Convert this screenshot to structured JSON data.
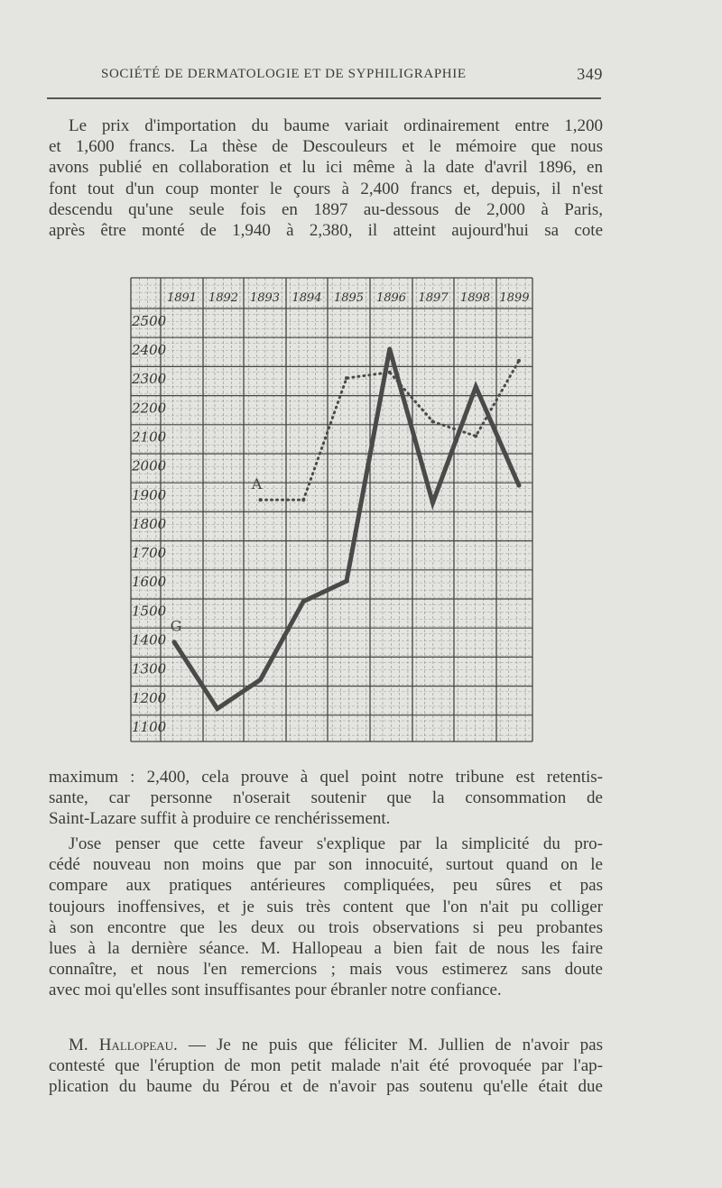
{
  "header": {
    "title": "SOCIÉTÉ DE DERMATOLOGIE ET DE SYPHILIGRAPHIE",
    "page_number": "349"
  },
  "para1": [
    "Le prix d'importation du baume variait ordinairement entre 1,200",
    "et 1,600 francs. La thèse de Descouleurs et le mémoire que nous",
    "avons publié en collaboration et lu ici même à la date d'avril 1896, en",
    "font tout d'un coup monter le çours à 2,400 francs et, depuis, il n'est",
    "descendu qu'une seule fois en 1897 au-dessous de 2,000 à Paris,",
    "après être monté de 1,940 à 2,380, il atteint aujourd'hui sa cote"
  ],
  "para2": [
    "maximum : 2,400, cela prouve à quel point notre tribune est retentis-",
    "sante, car personne n'oserait soutenir que la consommation de",
    "Saint-Lazare suffit à produire ce renchérissement."
  ],
  "para3": [
    "J'ose penser que cette faveur s'explique par la simplicité du pro-",
    "cédé nouveau non moins que par son innocuité, surtout quand on le",
    "compare aux pratiques antérieures compliquées, peu sûres et pas",
    "toujours inoffensives, et je suis très content que l'on n'ait pu colliger",
    "à son encontre que les deux ou trois observations si peu probantes",
    "lues à la dernière séance. M. Hallopeau a bien fait de nous les faire",
    "connaître, et nous l'en remercions ; mais vous estimerez sans doute",
    "avec moi qu'elles sont insuffisantes pour ébranler notre confiance."
  ],
  "para4": {
    "speaker": "M. Hallopeau.",
    "lines": [
      "— Je ne puis que féliciter M. Jullien de n'avoir pas",
      "contesté que l'éruption de mon petit malade n'ait été provoquée par l'ap-",
      "plication du baume du Pérou et de n'avoir pas soutenu qu'elle était due"
    ]
  },
  "chart_data": {
    "type": "line",
    "title": "",
    "xlabel": "",
    "ylabel": "",
    "x_tick_labels": [
      "1891",
      "1892",
      "1893",
      "1894",
      "1895",
      "1896",
      "1897",
      "1898",
      "1899"
    ],
    "y_tick_labels": [
      "2500",
      "2400",
      "2300",
      "2200",
      "2100",
      "2000",
      "1900",
      "1800",
      "1700",
      "1600",
      "1500",
      "1400",
      "1300",
      "1200",
      "1100"
    ],
    "ylim": [
      1100,
      2500
    ],
    "grid": true,
    "series": [
      {
        "name": "G",
        "style": "solid-heavy",
        "x": [
          1891,
          1892,
          1893,
          1894,
          1895,
          1896,
          1897,
          1898,
          1899
        ],
        "y": [
          1390,
          1160,
          1260,
          1530,
          1600,
          2400,
          1870,
          2270,
          1930
        ]
      },
      {
        "name": "A",
        "style": "dotted",
        "x": [
          1893,
          1894,
          1895,
          1896,
          1897,
          1898,
          1899
        ],
        "y": [
          1880,
          1880,
          2300,
          2320,
          2150,
          2100,
          2360
        ]
      }
    ],
    "colors": {
      "line": "#4a4a4a",
      "grid": "#6a6a6a"
    }
  }
}
